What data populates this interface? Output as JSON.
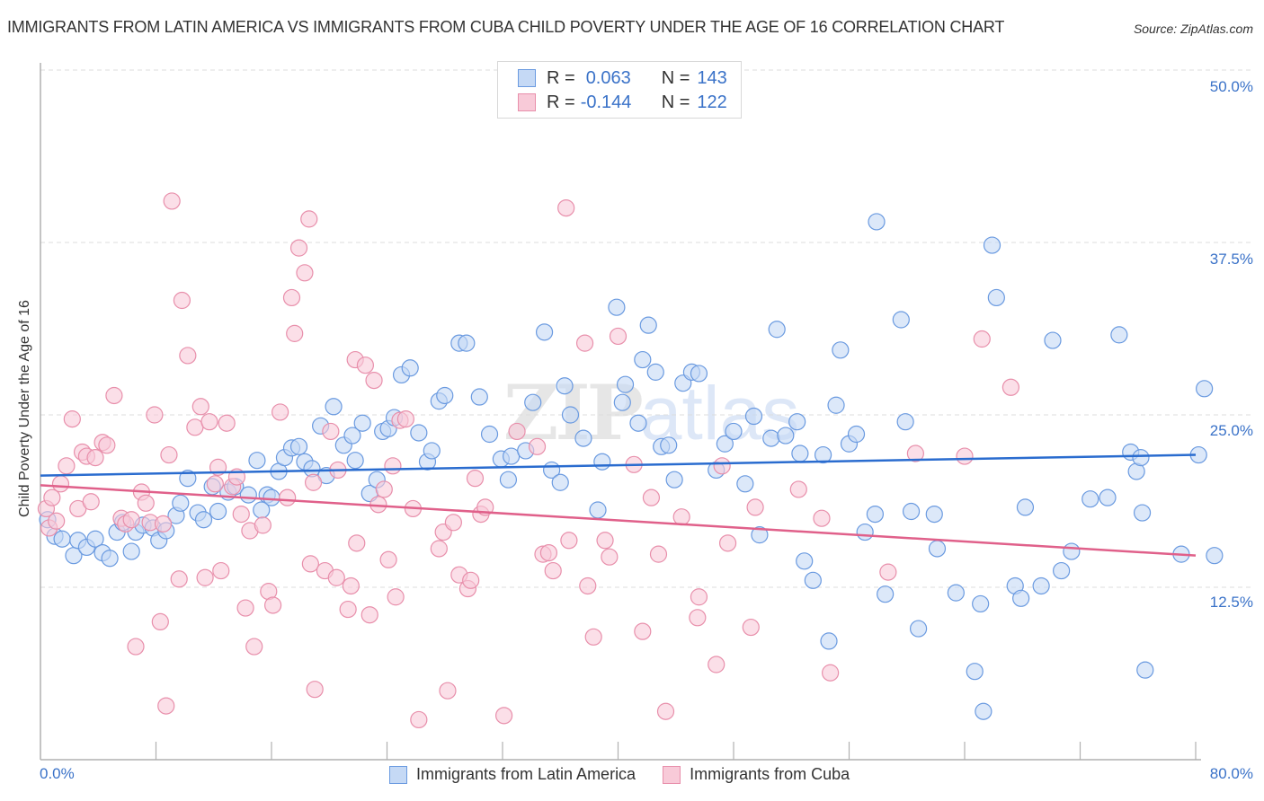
{
  "chart_data": {
    "type": "scatter",
    "title": "IMMIGRANTS FROM LATIN AMERICA VS IMMIGRANTS FROM CUBA CHILD POVERTY UNDER THE AGE OF 16 CORRELATION CHART",
    "source": "Source: ZipAtlas.com",
    "xlabel": "",
    "ylabel": "Child Poverty Under the Age of 16",
    "xlim": [
      0,
      80
    ],
    "ylim": [
      0,
      50
    ],
    "x_tick_labels": [
      "0.0%",
      "80.0%"
    ],
    "y_ticks": [
      {
        "value": 50.0,
        "label": "50.0%"
      },
      {
        "value": 37.5,
        "label": "37.5%"
      },
      {
        "value": 25.0,
        "label": "25.0%"
      },
      {
        "value": 12.5,
        "label": "12.5%"
      }
    ],
    "grid": true,
    "legend_position": "top-center",
    "watermark": {
      "zip": "ZIP",
      "atlas": "atlas"
    },
    "series": [
      {
        "name": "Immigrants from Latin America",
        "color": "#6a9ae0",
        "fill": "#c5d9f5",
        "line_color": "#2a6ccf",
        "R": "0.063",
        "N": "143",
        "trend": {
          "x": [
            0,
            80
          ],
          "y": [
            20.6,
            22.1
          ]
        },
        "points": [
          [
            0.5,
            17.4
          ],
          [
            1.0,
            16.2
          ],
          [
            1.5,
            16.0
          ],
          [
            2.3,
            14.8
          ],
          [
            2.6,
            15.9
          ],
          [
            3.2,
            15.4
          ],
          [
            3.8,
            16.0
          ],
          [
            4.3,
            15.0
          ],
          [
            4.8,
            14.6
          ],
          [
            5.3,
            16.5
          ],
          [
            5.7,
            17.2
          ],
          [
            6.3,
            15.1
          ],
          [
            6.6,
            16.5
          ],
          [
            7.1,
            17.0
          ],
          [
            7.8,
            16.8
          ],
          [
            8.2,
            15.9
          ],
          [
            8.7,
            16.6
          ],
          [
            9.4,
            17.7
          ],
          [
            9.7,
            18.6
          ],
          [
            10.2,
            20.4
          ],
          [
            10.9,
            17.9
          ],
          [
            11.3,
            17.4
          ],
          [
            11.9,
            19.8
          ],
          [
            12.3,
            18.0
          ],
          [
            13.0,
            19.4
          ],
          [
            13.5,
            19.8
          ],
          [
            14.4,
            19.2
          ],
          [
            15.0,
            21.7
          ],
          [
            15.3,
            18.1
          ],
          [
            15.7,
            19.2
          ],
          [
            16.0,
            19.0
          ],
          [
            16.5,
            20.9
          ],
          [
            16.9,
            21.9
          ],
          [
            17.4,
            22.6
          ],
          [
            17.9,
            22.7
          ],
          [
            18.3,
            21.6
          ],
          [
            18.8,
            21.1
          ],
          [
            19.4,
            24.2
          ],
          [
            19.8,
            20.6
          ],
          [
            20.3,
            25.6
          ],
          [
            21.0,
            22.8
          ],
          [
            21.6,
            23.5
          ],
          [
            21.8,
            21.7
          ],
          [
            22.3,
            24.4
          ],
          [
            22.8,
            19.3
          ],
          [
            23.3,
            20.3
          ],
          [
            23.7,
            23.8
          ],
          [
            24.1,
            24.0
          ],
          [
            24.5,
            24.8
          ],
          [
            25.0,
            27.9
          ],
          [
            25.6,
            28.4
          ],
          [
            26.2,
            23.7
          ],
          [
            26.8,
            21.6
          ],
          [
            27.1,
            22.4
          ],
          [
            27.6,
            26.0
          ],
          [
            28.0,
            26.4
          ],
          [
            29.0,
            30.2
          ],
          [
            29.5,
            30.2
          ],
          [
            30.4,
            26.3
          ],
          [
            31.1,
            23.6
          ],
          [
            31.9,
            21.8
          ],
          [
            32.4,
            20.3
          ],
          [
            32.6,
            22.0
          ],
          [
            33.6,
            22.4
          ],
          [
            34.1,
            25.9
          ],
          [
            34.9,
            31.0
          ],
          [
            35.4,
            21.0
          ],
          [
            36.0,
            20.1
          ],
          [
            36.3,
            27.1
          ],
          [
            36.7,
            25.0
          ],
          [
            37.6,
            23.3
          ],
          [
            38.6,
            18.1
          ],
          [
            38.9,
            21.6
          ],
          [
            39.9,
            32.8
          ],
          [
            40.3,
            25.9
          ],
          [
            40.5,
            27.2
          ],
          [
            41.4,
            24.4
          ],
          [
            41.7,
            29.0
          ],
          [
            42.1,
            31.5
          ],
          [
            42.6,
            28.1
          ],
          [
            43.0,
            22.7
          ],
          [
            43.5,
            22.8
          ],
          [
            43.9,
            20.3
          ],
          [
            44.5,
            27.3
          ],
          [
            45.1,
            28.1
          ],
          [
            45.6,
            28.0
          ],
          [
            46.8,
            21.0
          ],
          [
            47.4,
            22.9
          ],
          [
            48.0,
            23.8
          ],
          [
            48.8,
            20.0
          ],
          [
            49.4,
            24.9
          ],
          [
            49.8,
            16.3
          ],
          [
            50.6,
            23.3
          ],
          [
            51.0,
            31.2
          ],
          [
            51.6,
            23.5
          ],
          [
            52.4,
            24.5
          ],
          [
            52.6,
            22.2
          ],
          [
            52.9,
            14.4
          ],
          [
            53.5,
            13.0
          ],
          [
            54.2,
            22.1
          ],
          [
            54.6,
            8.6
          ],
          [
            55.1,
            25.7
          ],
          [
            55.4,
            29.7
          ],
          [
            56.0,
            22.9
          ],
          [
            56.5,
            23.6
          ],
          [
            57.1,
            16.5
          ],
          [
            57.8,
            17.8
          ],
          [
            57.9,
            39.0
          ],
          [
            58.5,
            12.0
          ],
          [
            59.6,
            31.9
          ],
          [
            59.9,
            24.5
          ],
          [
            60.3,
            18.0
          ],
          [
            60.8,
            9.5
          ],
          [
            61.9,
            17.8
          ],
          [
            62.1,
            15.3
          ],
          [
            63.4,
            12.1
          ],
          [
            64.7,
            6.4
          ],
          [
            65.1,
            11.3
          ],
          [
            65.3,
            3.5
          ],
          [
            65.9,
            37.3
          ],
          [
            66.2,
            33.5
          ],
          [
            67.5,
            12.6
          ],
          [
            67.9,
            11.7
          ],
          [
            68.2,
            18.3
          ],
          [
            69.3,
            12.6
          ],
          [
            70.1,
            30.4
          ],
          [
            70.7,
            13.7
          ],
          [
            71.4,
            15.1
          ],
          [
            72.7,
            18.9
          ],
          [
            73.9,
            19.0
          ],
          [
            74.7,
            30.8
          ],
          [
            75.5,
            22.3
          ],
          [
            75.9,
            20.9
          ],
          [
            76.2,
            21.9
          ],
          [
            76.3,
            17.9
          ],
          [
            76.5,
            6.5
          ],
          [
            79.0,
            14.9
          ],
          [
            80.6,
            26.9
          ],
          [
            80.2,
            22.1
          ],
          [
            81.3,
            14.8
          ]
        ]
      },
      {
        "name": "Immigrants from Cuba",
        "color": "#e88fab",
        "fill": "#f8cad8",
        "line_color": "#e0608a",
        "R": "-0.144",
        "N": "122",
        "trend": {
          "x": [
            0,
            80
          ],
          "y": [
            19.9,
            14.8
          ]
        },
        "points": [
          [
            0.4,
            18.2
          ],
          [
            0.6,
            16.8
          ],
          [
            0.8,
            19.0
          ],
          [
            1.1,
            17.3
          ],
          [
            1.4,
            20.0
          ],
          [
            1.8,
            21.3
          ],
          [
            2.2,
            24.7
          ],
          [
            2.6,
            18.2
          ],
          [
            2.9,
            22.3
          ],
          [
            3.2,
            22.0
          ],
          [
            3.5,
            18.7
          ],
          [
            3.8,
            21.9
          ],
          [
            4.3,
            23.0
          ],
          [
            4.6,
            22.8
          ],
          [
            5.1,
            26.4
          ],
          [
            5.6,
            17.5
          ],
          [
            5.9,
            17.1
          ],
          [
            6.3,
            17.4
          ],
          [
            6.6,
            8.2
          ],
          [
            7.0,
            19.4
          ],
          [
            7.3,
            18.6
          ],
          [
            7.6,
            17.2
          ],
          [
            7.9,
            25.0
          ],
          [
            8.3,
            10.0
          ],
          [
            8.5,
            17.1
          ],
          [
            8.7,
            3.9
          ],
          [
            8.9,
            22.1
          ],
          [
            9.1,
            40.5
          ],
          [
            9.6,
            13.1
          ],
          [
            9.8,
            33.3
          ],
          [
            10.2,
            29.3
          ],
          [
            10.7,
            24.1
          ],
          [
            11.1,
            25.6
          ],
          [
            11.4,
            13.2
          ],
          [
            11.7,
            24.5
          ],
          [
            12.1,
            20.0
          ],
          [
            12.3,
            21.2
          ],
          [
            12.5,
            13.7
          ],
          [
            12.9,
            24.4
          ],
          [
            13.3,
            19.8
          ],
          [
            13.6,
            20.5
          ],
          [
            13.9,
            17.8
          ],
          [
            14.2,
            11.0
          ],
          [
            14.5,
            16.6
          ],
          [
            14.8,
            8.2
          ],
          [
            15.4,
            17.0
          ],
          [
            15.8,
            12.2
          ],
          [
            16.1,
            11.2
          ],
          [
            16.6,
            25.2
          ],
          [
            17.1,
            19.0
          ],
          [
            17.4,
            33.5
          ],
          [
            17.6,
            30.9
          ],
          [
            17.9,
            37.1
          ],
          [
            18.3,
            35.3
          ],
          [
            18.6,
            39.2
          ],
          [
            18.9,
            20.1
          ],
          [
            18.7,
            14.2
          ],
          [
            19.0,
            5.1
          ],
          [
            19.7,
            13.7
          ],
          [
            20.1,
            23.8
          ],
          [
            20.5,
            13.2
          ],
          [
            20.6,
            21.0
          ],
          [
            21.3,
            10.9
          ],
          [
            21.5,
            12.6
          ],
          [
            21.8,
            29.0
          ],
          [
            21.9,
            15.7
          ],
          [
            22.5,
            28.6
          ],
          [
            22.8,
            10.5
          ],
          [
            23.1,
            27.5
          ],
          [
            23.4,
            18.5
          ],
          [
            23.8,
            19.6
          ],
          [
            24.1,
            14.5
          ],
          [
            24.4,
            21.3
          ],
          [
            24.6,
            11.8
          ],
          [
            24.9,
            24.6
          ],
          [
            25.3,
            24.7
          ],
          [
            25.8,
            18.2
          ],
          [
            26.2,
            2.9
          ],
          [
            27.6,
            15.3
          ],
          [
            27.9,
            16.5
          ],
          [
            28.2,
            5.0
          ],
          [
            28.6,
            17.2
          ],
          [
            29.0,
            13.4
          ],
          [
            29.6,
            12.4
          ],
          [
            29.8,
            13.0
          ],
          [
            30.1,
            20.4
          ],
          [
            30.5,
            17.8
          ],
          [
            30.8,
            18.3
          ],
          [
            32.1,
            3.2
          ],
          [
            33.0,
            23.8
          ],
          [
            34.4,
            22.7
          ],
          [
            34.8,
            14.9
          ],
          [
            35.2,
            15.0
          ],
          [
            35.5,
            13.7
          ],
          [
            36.4,
            40.0
          ],
          [
            36.6,
            15.9
          ],
          [
            37.7,
            30.2
          ],
          [
            37.9,
            12.6
          ],
          [
            38.3,
            8.9
          ],
          [
            39.1,
            15.9
          ],
          [
            39.4,
            14.7
          ],
          [
            40.0,
            30.7
          ],
          [
            41.1,
            21.4
          ],
          [
            41.7,
            9.3
          ],
          [
            42.3,
            19.0
          ],
          [
            42.8,
            14.9
          ],
          [
            43.3,
            3.5
          ],
          [
            44.4,
            17.6
          ],
          [
            45.5,
            10.3
          ],
          [
            45.6,
            11.8
          ],
          [
            46.8,
            6.9
          ],
          [
            47.2,
            21.3
          ],
          [
            47.6,
            15.7
          ],
          [
            49.2,
            9.6
          ],
          [
            49.5,
            18.3
          ],
          [
            52.5,
            19.6
          ],
          [
            54.1,
            17.5
          ],
          [
            54.7,
            6.3
          ],
          [
            58.7,
            13.6
          ],
          [
            60.6,
            22.2
          ],
          [
            64.0,
            22.0
          ],
          [
            65.2,
            30.5
          ],
          [
            67.2,
            27.0
          ]
        ]
      }
    ]
  },
  "legend": {
    "rows": [
      {
        "r_label": "R =",
        "r_value": "0.063",
        "n_label": "N =",
        "n_value": "143"
      },
      {
        "r_label": "R =",
        "r_value": "-0.144",
        "n_label": "N =",
        "n_value": "122"
      }
    ]
  }
}
